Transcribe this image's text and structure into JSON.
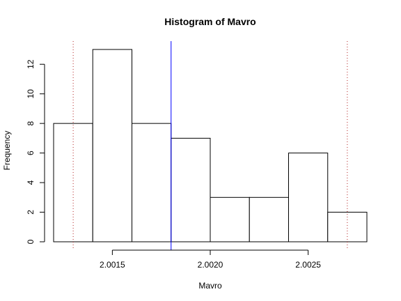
{
  "chart_data": {
    "type": "bar",
    "subtype": "histogram",
    "title": "Histogram of Mavro",
    "xlabel": "Mavro",
    "ylabel": "Frequency",
    "bins": [
      {
        "start": 2.0012,
        "end": 2.0014,
        "count": 8
      },
      {
        "start": 2.0014,
        "end": 2.0016,
        "count": 13
      },
      {
        "start": 2.0016,
        "end": 2.0018,
        "count": 8
      },
      {
        "start": 2.0018,
        "end": 2.002,
        "count": 7
      },
      {
        "start": 2.002,
        "end": 2.0022,
        "count": 3
      },
      {
        "start": 2.0022,
        "end": 2.0024,
        "count": 3
      },
      {
        "start": 2.0024,
        "end": 2.0026,
        "count": 6
      },
      {
        "start": 2.0026,
        "end": 2.0028,
        "count": 2
      }
    ],
    "xlim": [
      2.0012,
      2.0028
    ],
    "ylim": [
      0,
      13.5
    ],
    "x_ticks": [
      {
        "value": 2.0015,
        "label": "2.0015"
      },
      {
        "value": 2.002,
        "label": "2.0020"
      },
      {
        "value": 2.0025,
        "label": "2.0025"
      }
    ],
    "y_ticks": [
      {
        "value": 0,
        "label": "0"
      },
      {
        "value": 2,
        "label": "2"
      },
      {
        "value": 4,
        "label": "4"
      },
      {
        "value": 6,
        "label": "6"
      },
      {
        "value": 8,
        "label": "8"
      },
      {
        "value": 10,
        "label": "10"
      },
      {
        "value": 12,
        "label": "12"
      }
    ],
    "reference_lines": [
      {
        "x": 2.0013,
        "style": "dotted",
        "color": "#b22222"
      },
      {
        "x": 2.0018,
        "style": "solid",
        "color": "#0000ff"
      },
      {
        "x": 2.0027,
        "style": "dotted",
        "color": "#b22222"
      }
    ],
    "grid": false,
    "colors": {
      "bar_fill": "#ffffff",
      "bar_stroke": "#000000",
      "axis": "#000000"
    }
  }
}
